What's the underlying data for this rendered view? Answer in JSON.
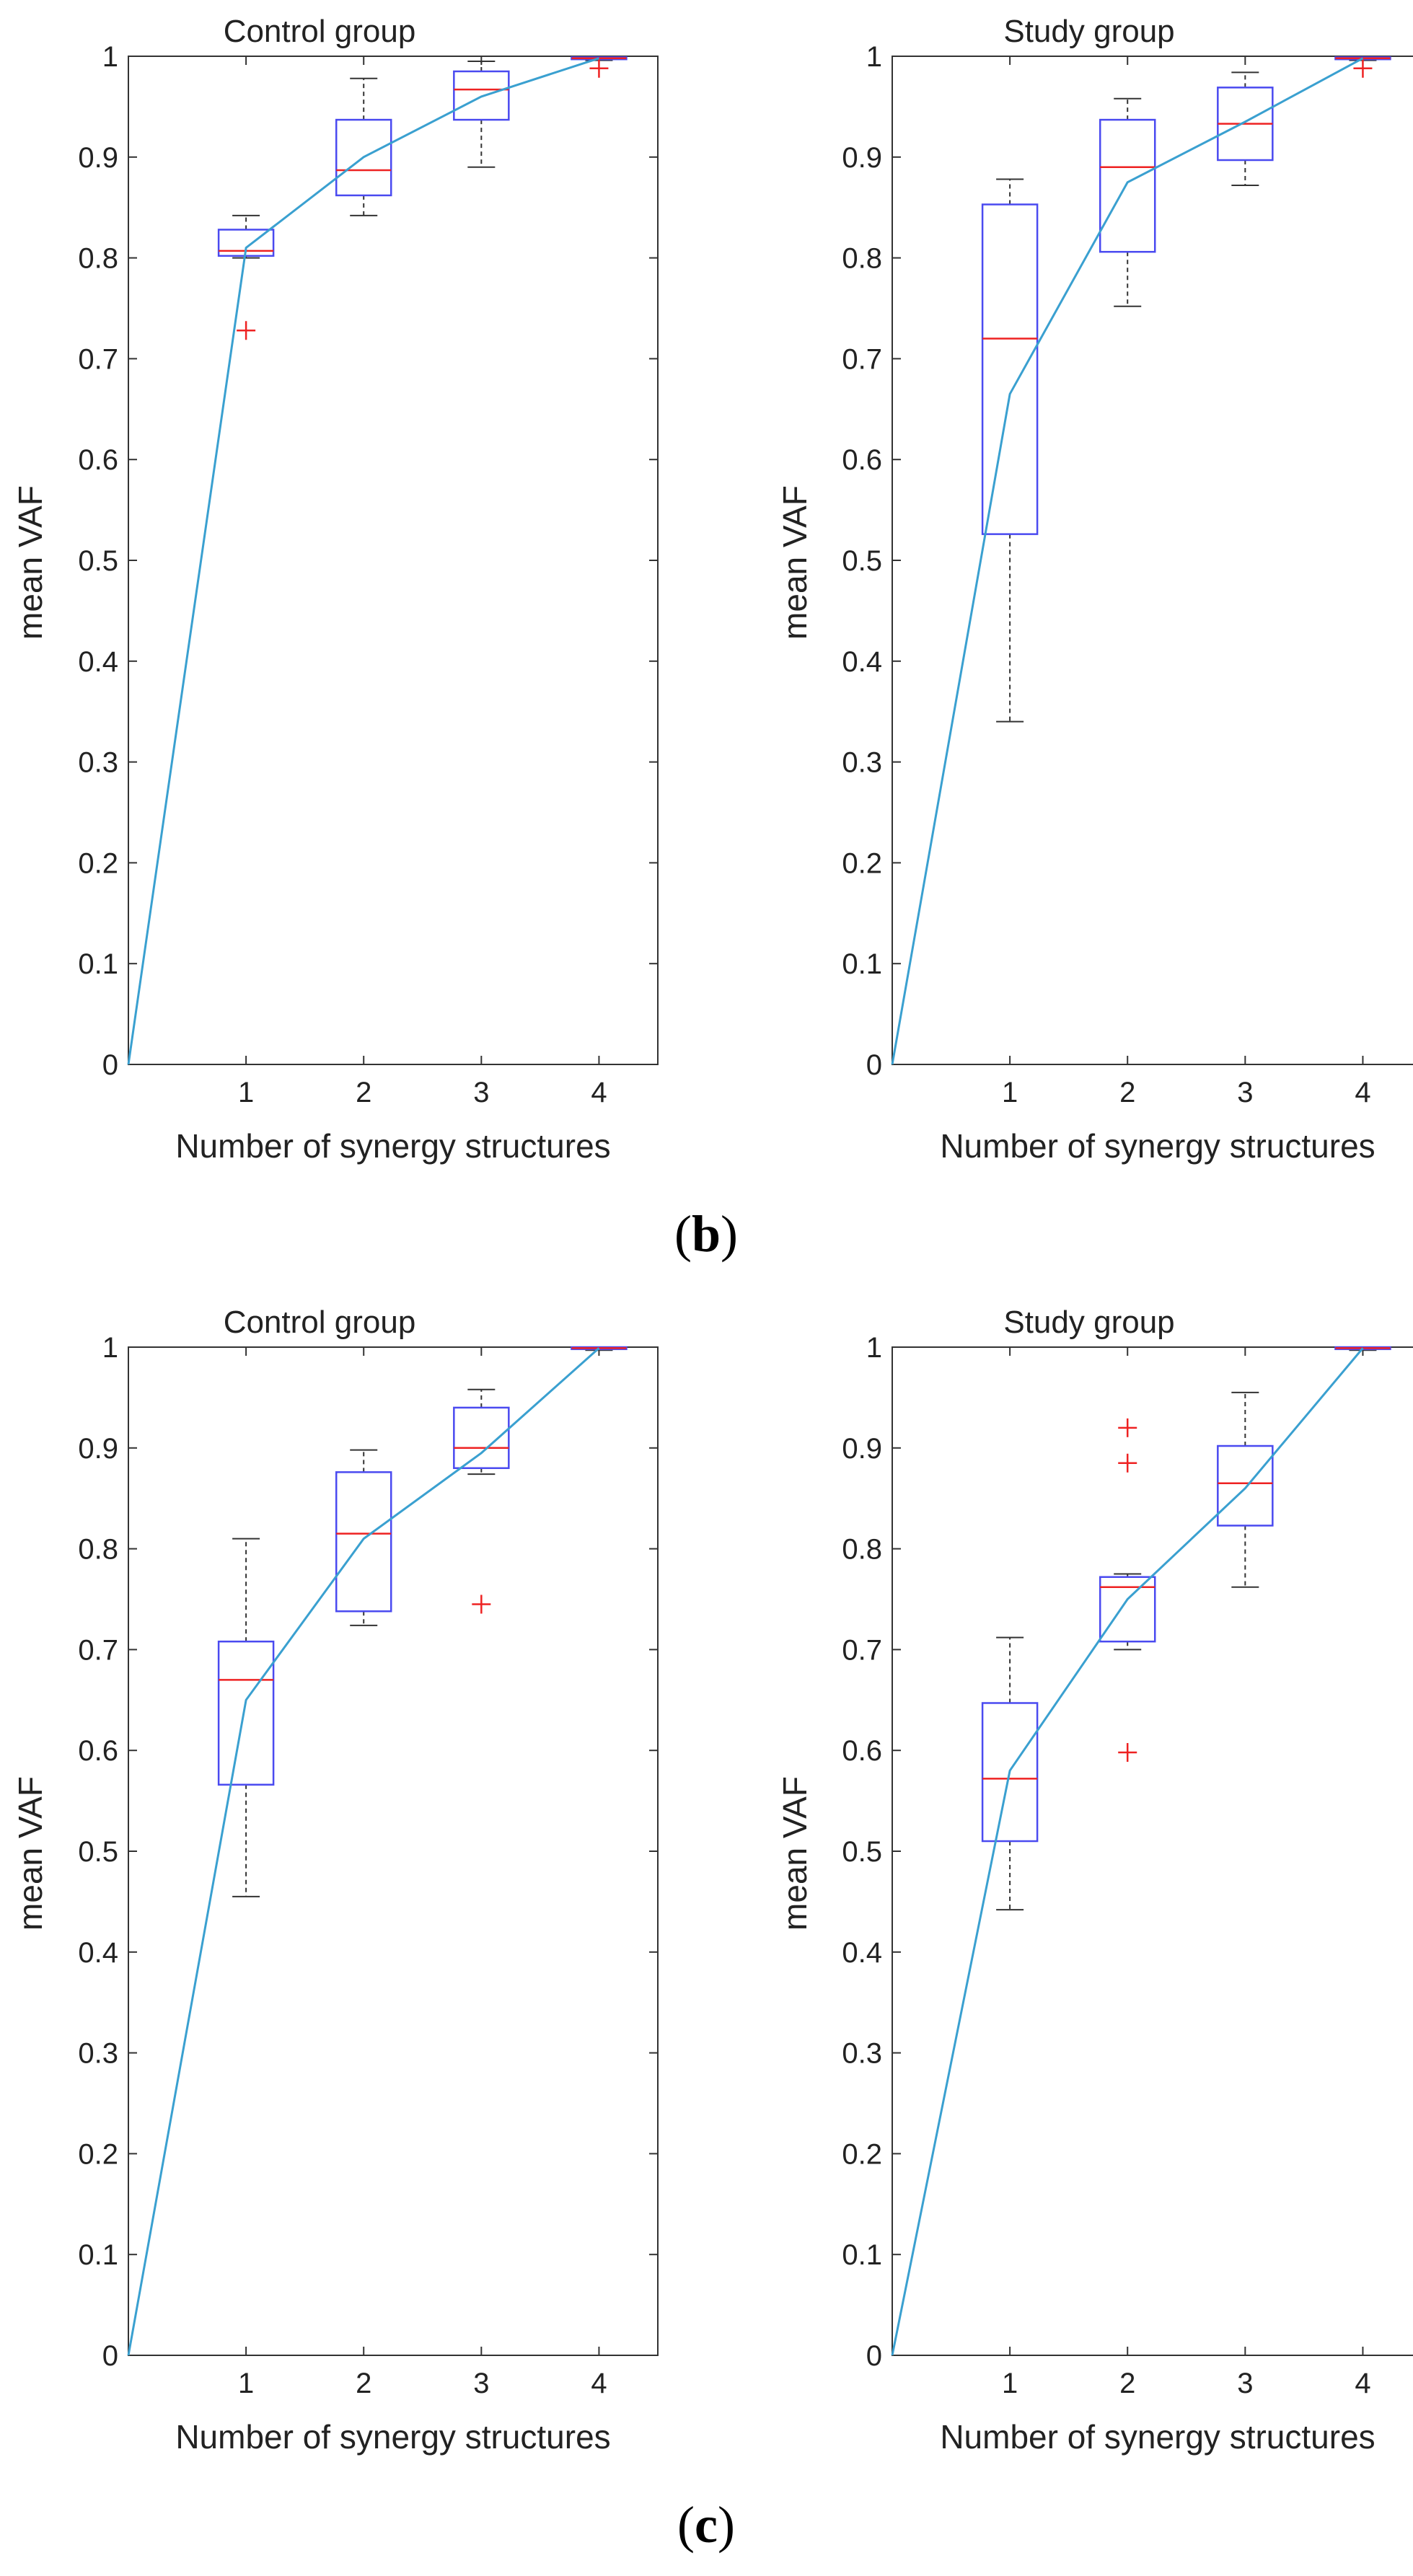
{
  "figure": {
    "captions": [
      {
        "open": "(",
        "letter": "b",
        "close": ")"
      },
      {
        "open": "(",
        "letter": "c",
        "close": ")"
      }
    ]
  },
  "colors": {
    "box": "#4a4af0",
    "median": "#ee2222",
    "whisker": "#333333",
    "outlier": "#ee2222",
    "mean_line": "#3aa0d0",
    "axis": "#333333"
  },
  "chart_data": [
    {
      "type": "boxplot",
      "panel": "b",
      "title": "Control group",
      "xlabel": "Number of synergy structures",
      "ylabel": "mean VAF",
      "xlim": [
        0,
        4.5
      ],
      "ylim": [
        0,
        1
      ],
      "x_ticks": [
        1,
        2,
        3,
        4
      ],
      "y_ticks": [
        0,
        0.1,
        0.2,
        0.3,
        0.4,
        0.5,
        0.6,
        0.7,
        0.8,
        0.9,
        1
      ],
      "y_tick_labels": [
        "0",
        "0.1",
        "0.2",
        "0.3",
        "0.4",
        "0.5",
        "0.6",
        "0.7",
        "0.8",
        "0.9",
        "1"
      ],
      "boxes": [
        {
          "x": 1,
          "whisker_low": 0.8,
          "q1": 0.802,
          "median": 0.807,
          "q3": 0.828,
          "whisker_high": 0.842,
          "outliers": [
            0.728
          ]
        },
        {
          "x": 2,
          "whisker_low": 0.842,
          "q1": 0.862,
          "median": 0.887,
          "q3": 0.937,
          "whisker_high": 0.978,
          "outliers": []
        },
        {
          "x": 3,
          "whisker_low": 0.89,
          "q1": 0.937,
          "median": 0.967,
          "q3": 0.985,
          "whisker_high": 0.995,
          "outliers": []
        },
        {
          "x": 4,
          "whisker_low": 0.996,
          "q1": 0.997,
          "median": 0.998,
          "q3": 0.999,
          "whisker_high": 1.0,
          "outliers": [
            0.988
          ]
        }
      ],
      "mean_line": {
        "x": [
          0,
          1,
          2,
          3,
          4
        ],
        "y": [
          0,
          0.81,
          0.9,
          0.96,
          0.998
        ]
      }
    },
    {
      "type": "boxplot",
      "panel": "b",
      "title": "Study group",
      "xlabel": "Number of synergy structures",
      "ylabel": "mean VAF",
      "xlim": [
        0,
        4.5
      ],
      "ylim": [
        0,
        1
      ],
      "x_ticks": [
        1,
        2,
        3,
        4
      ],
      "y_ticks": [
        0,
        0.1,
        0.2,
        0.3,
        0.4,
        0.5,
        0.6,
        0.7,
        0.8,
        0.9,
        1
      ],
      "y_tick_labels": [
        "0",
        "0.1",
        "0.2",
        "0.3",
        "0.4",
        "0.5",
        "0.6",
        "0.7",
        "0.8",
        "0.9",
        "1"
      ],
      "boxes": [
        {
          "x": 1,
          "whisker_low": 0.34,
          "q1": 0.526,
          "median": 0.72,
          "q3": 0.853,
          "whisker_high": 0.878,
          "outliers": []
        },
        {
          "x": 2,
          "whisker_low": 0.752,
          "q1": 0.806,
          "median": 0.89,
          "q3": 0.937,
          "whisker_high": 0.958,
          "outliers": []
        },
        {
          "x": 3,
          "whisker_low": 0.872,
          "q1": 0.897,
          "median": 0.933,
          "q3": 0.969,
          "whisker_high": 0.984,
          "outliers": []
        },
        {
          "x": 4,
          "whisker_low": 0.996,
          "q1": 0.997,
          "median": 0.998,
          "q3": 0.999,
          "whisker_high": 1.0,
          "outliers": [
            0.988
          ]
        }
      ],
      "mean_line": {
        "x": [
          0,
          1,
          2,
          3,
          4
        ],
        "y": [
          0,
          0.665,
          0.875,
          0.935,
          0.998
        ]
      }
    },
    {
      "type": "boxplot",
      "panel": "c",
      "title": "Control group",
      "xlabel": "Number of synergy structures",
      "ylabel": "mean VAF",
      "xlim": [
        0,
        4.5
      ],
      "ylim": [
        0,
        1
      ],
      "x_ticks": [
        1,
        2,
        3,
        4
      ],
      "y_ticks": [
        0,
        0.1,
        0.2,
        0.3,
        0.4,
        0.5,
        0.6,
        0.7,
        0.8,
        0.9,
        1
      ],
      "y_tick_labels": [
        "0",
        "0.1",
        "0.2",
        "0.3",
        "0.4",
        "0.5",
        "0.6",
        "0.7",
        "0.8",
        "0.9",
        "1"
      ],
      "boxes": [
        {
          "x": 1,
          "whisker_low": 0.455,
          "q1": 0.566,
          "median": 0.67,
          "q3": 0.708,
          "whisker_high": 0.81,
          "outliers": []
        },
        {
          "x": 2,
          "whisker_low": 0.724,
          "q1": 0.738,
          "median": 0.815,
          "q3": 0.876,
          "whisker_high": 0.898,
          "outliers": []
        },
        {
          "x": 3,
          "whisker_low": 0.874,
          "q1": 0.88,
          "median": 0.9,
          "q3": 0.94,
          "whisker_high": 0.958,
          "outliers": [
            0.745
          ]
        },
        {
          "x": 4,
          "whisker_low": 0.997,
          "q1": 0.998,
          "median": 0.999,
          "q3": 1.0,
          "whisker_high": 1.0,
          "outliers": []
        }
      ],
      "mean_line": {
        "x": [
          0,
          1,
          2,
          3,
          4
        ],
        "y": [
          0,
          0.65,
          0.81,
          0.895,
          0.999
        ]
      }
    },
    {
      "type": "boxplot",
      "panel": "c",
      "title": "Study group",
      "xlabel": "Number of synergy structures",
      "ylabel": "mean VAF",
      "xlim": [
        0,
        4.5
      ],
      "ylim": [
        0,
        1
      ],
      "x_ticks": [
        1,
        2,
        3,
        4
      ],
      "y_ticks": [
        0,
        0.1,
        0.2,
        0.3,
        0.4,
        0.5,
        0.6,
        0.7,
        0.8,
        0.9,
        1
      ],
      "y_tick_labels": [
        "0",
        "0.1",
        "0.2",
        "0.3",
        "0.4",
        "0.5",
        "0.6",
        "0.7",
        "0.8",
        "0.9",
        "1"
      ],
      "boxes": [
        {
          "x": 1,
          "whisker_low": 0.442,
          "q1": 0.51,
          "median": 0.572,
          "q3": 0.647,
          "whisker_high": 0.712,
          "outliers": []
        },
        {
          "x": 2,
          "whisker_low": 0.7,
          "q1": 0.708,
          "median": 0.762,
          "q3": 0.772,
          "whisker_high": 0.775,
          "outliers": [
            0.92,
            0.885,
            0.598
          ]
        },
        {
          "x": 3,
          "whisker_low": 0.762,
          "q1": 0.823,
          "median": 0.865,
          "q3": 0.902,
          "whisker_high": 0.955,
          "outliers": []
        },
        {
          "x": 4,
          "whisker_low": 0.997,
          "q1": 0.998,
          "median": 0.999,
          "q3": 1.0,
          "whisker_high": 1.0,
          "outliers": []
        }
      ],
      "mean_line": {
        "x": [
          0,
          1,
          2,
          3,
          4
        ],
        "y": [
          0,
          0.58,
          0.75,
          0.86,
          0.999
        ]
      }
    }
  ]
}
